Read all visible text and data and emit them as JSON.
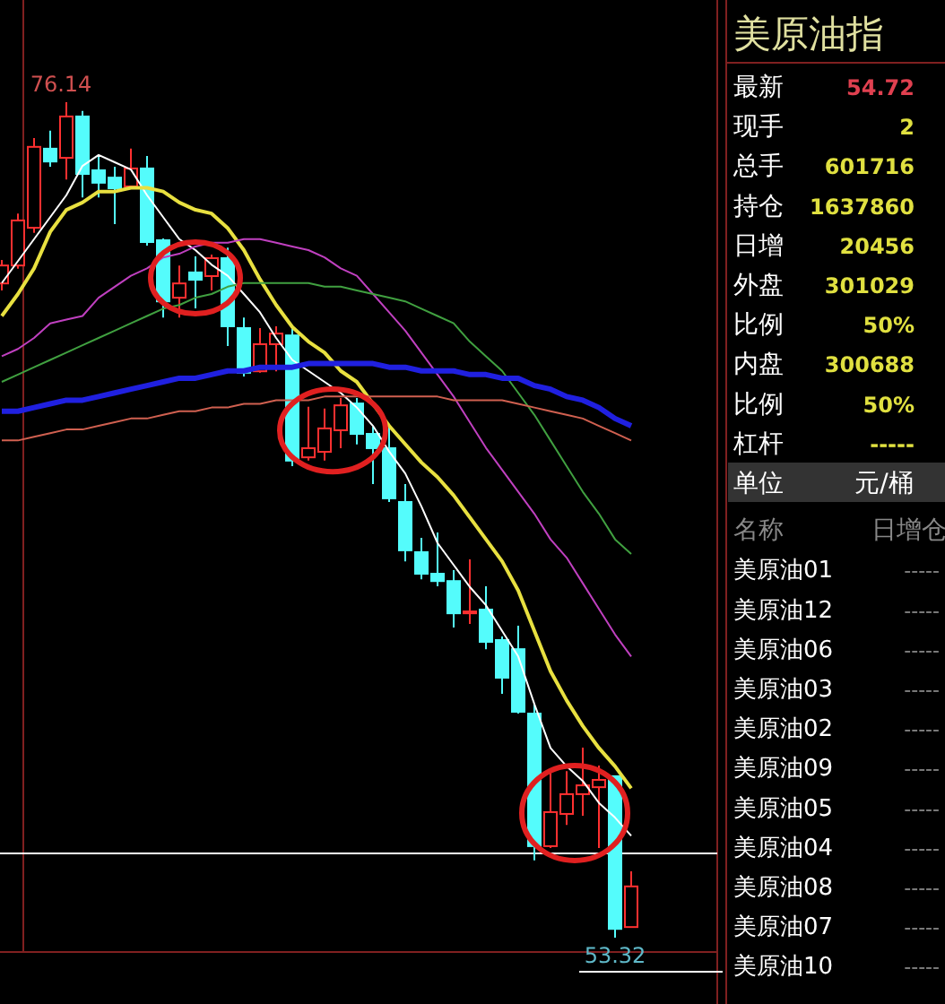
{
  "chart_data": [
    {
      "type": "candlestick",
      "categories": [
        null,
        null,
        null,
        null,
        null,
        null,
        null,
        null,
        null,
        null,
        null,
        null,
        null,
        null,
        null,
        null,
        null,
        null,
        null,
        null,
        null,
        null,
        null,
        null,
        null,
        null,
        null,
        null,
        null,
        null,
        null,
        null,
        null,
        null,
        null,
        null,
        null,
        null,
        null,
        null
      ],
      "ohlc": [
        [
          71.19,
          71.83,
          71.0,
          71.68
        ],
        [
          71.68,
          73.1,
          71.59,
          72.91
        ],
        [
          72.71,
          75.16,
          72.57,
          74.92
        ],
        [
          74.87,
          75.36,
          74.38,
          74.52
        ],
        [
          74.62,
          76.14,
          74.03,
          75.75
        ],
        [
          75.75,
          75.9,
          73.54,
          74.18
        ],
        [
          74.28,
          74.67,
          73.54,
          73.94
        ],
        [
          74.08,
          74.38,
          72.81,
          73.79
        ],
        [
          73.84,
          74.87,
          73.79,
          74.33
        ],
        [
          74.33,
          74.67,
          72.22,
          72.32
        ],
        [
          72.37,
          72.42,
          70.26,
          70.7
        ],
        [
          70.8,
          71.68,
          70.26,
          71.19
        ],
        [
          71.49,
          71.93,
          70.51,
          71.29
        ],
        [
          71.39,
          71.98,
          71.0,
          71.88
        ],
        [
          71.88,
          72.17,
          69.48,
          70.02
        ],
        [
          69.97,
          70.26,
          68.65,
          68.75
        ],
        [
          68.79,
          69.97,
          68.75,
          69.53
        ],
        [
          69.53,
          70.02,
          68.79,
          69.82
        ],
        [
          69.77,
          69.97,
          66.2,
          66.35
        ],
        [
          66.44,
          67.82,
          66.35,
          66.69
        ],
        [
          66.59,
          67.77,
          66.35,
          67.23
        ],
        [
          67.18,
          68.06,
          66.69,
          67.86
        ],
        [
          67.91,
          68.06,
          66.79,
          67.08
        ],
        [
          67.08,
          67.28,
          65.71,
          66.69
        ],
        [
          66.69,
          67.28,
          65.22,
          65.32
        ],
        [
          65.22,
          65.71,
          63.6,
          63.9
        ],
        [
          63.85,
          64.24,
          63.11,
          63.26
        ],
        [
          63.26,
          64.39,
          62.92,
          63.06
        ],
        [
          63.06,
          63.36,
          61.79,
          62.18
        ],
        [
          62.18,
          63.65,
          61.89,
          62.23
        ],
        [
          62.28,
          62.92,
          61.2,
          61.4
        ],
        [
          61.45,
          61.55,
          59.98,
          60.42
        ],
        [
          61.2,
          61.84,
          59.44,
          59.49
        ],
        [
          59.44,
          59.69,
          55.43,
          55.82
        ],
        [
          55.82,
          57.87,
          55.77,
          56.75
        ],
        [
          56.7,
          57.87,
          56.4,
          57.24
        ],
        [
          57.24,
          58.51,
          56.65,
          57.48
        ],
        [
          57.43,
          58.02,
          55.77,
          57.63
        ],
        [
          57.73,
          57.73,
          53.32,
          53.56
        ],
        [
          53.61,
          55.13,
          53.61,
          54.72
        ]
      ],
      "series": [
        {
          "type": "line",
          "color": "#ffffff",
          "values": [
            71.2,
            71.8,
            72.4,
            73.0,
            73.6,
            74.4,
            74.7,
            74.5,
            74.3,
            73.6,
            73.0,
            72.4,
            72.1,
            71.7,
            71.4,
            70.9,
            70.4,
            69.7,
            69.1,
            68.8,
            68.5,
            68.2,
            67.8,
            67.3,
            66.6,
            66.0,
            65.1,
            64.1,
            63.5,
            62.9,
            62.4,
            61.7,
            61.0,
            59.7,
            58.5,
            58.0,
            57.6,
            57.0,
            56.6,
            56.1
          ]
        },
        {
          "type": "line",
          "color": "#e8e040",
          "values": [
            70.3,
            70.9,
            71.6,
            72.6,
            73.2,
            73.4,
            73.7,
            73.7,
            73.8,
            73.8,
            73.7,
            73.4,
            73.2,
            73.1,
            72.7,
            72.1,
            71.3,
            70.6,
            70.0,
            69.6,
            69.3,
            68.8,
            68.5,
            67.9,
            67.3,
            66.8,
            66.3,
            65.9,
            65.4,
            64.8,
            64.2,
            63.6,
            62.8,
            61.7,
            60.6,
            59.8,
            59.1,
            58.5,
            58.0,
            57.4
          ]
        },
        {
          "type": "line",
          "color": "#c040c0",
          "values": [
            69.2,
            69.4,
            69.7,
            70.1,
            70.2,
            70.3,
            70.8,
            71.1,
            71.4,
            71.6,
            71.9,
            72.0,
            72.2,
            72.3,
            72.3,
            72.4,
            72.4,
            72.3,
            72.2,
            72.1,
            71.9,
            71.6,
            71.4,
            70.9,
            70.4,
            69.9,
            69.3,
            68.7,
            68.1,
            67.4,
            66.7,
            66.1,
            65.5,
            64.9,
            64.2,
            63.7,
            63.0,
            62.3,
            61.6,
            61.0
          ]
        },
        {
          "type": "line",
          "color": "#40a040",
          "values": [
            68.5,
            68.7,
            68.9,
            69.1,
            69.3,
            69.5,
            69.7,
            69.9,
            70.1,
            70.3,
            70.5,
            70.6,
            70.8,
            70.9,
            71.1,
            71.2,
            71.2,
            71.2,
            71.2,
            71.2,
            71.1,
            71.1,
            71.0,
            70.9,
            70.8,
            70.7,
            70.5,
            70.3,
            70.1,
            69.6,
            69.2,
            68.8,
            68.2,
            67.6,
            66.9,
            66.2,
            65.5,
            64.9,
            64.2,
            63.8
          ]
        },
        {
          "type": "line",
          "color": "#2020e0",
          "values": [
            67.7,
            67.7,
            67.8,
            67.9,
            68.0,
            68.0,
            68.1,
            68.2,
            68.3,
            68.4,
            68.5,
            68.6,
            68.6,
            68.7,
            68.8,
            68.8,
            68.9,
            68.9,
            68.9,
            69.0,
            69.0,
            69.0,
            69.0,
            69.0,
            68.9,
            68.9,
            68.8,
            68.8,
            68.8,
            68.7,
            68.7,
            68.6,
            68.6,
            68.4,
            68.3,
            68.1,
            68.0,
            67.8,
            67.5,
            67.3
          ]
        },
        {
          "type": "line",
          "color": "#d06050",
          "values": [
            66.9,
            66.9,
            67.0,
            67.1,
            67.2,
            67.2,
            67.3,
            67.4,
            67.5,
            67.5,
            67.6,
            67.7,
            67.7,
            67.8,
            67.8,
            67.9,
            67.9,
            68.0,
            68.0,
            68.0,
            68.1,
            68.1,
            68.1,
            68.1,
            68.1,
            68.1,
            68.1,
            68.1,
            68.0,
            68.0,
            68.0,
            68.0,
            67.9,
            67.8,
            67.7,
            67.6,
            67.5,
            67.3,
            67.1,
            66.9
          ]
        }
      ],
      "ref_lines": [
        {
          "axis": "y",
          "value": 55.62,
          "color": "#ffffff"
        }
      ],
      "annotations": [
        {
          "text": "76.14",
          "y": 76.14
        },
        {
          "text": "53.32",
          "y": 53.32
        }
      ]
    },
    {
      "type": "other",
      "title": "美原油指",
      "annotations": [
        "最新",
        "54.72",
        "现手",
        "2",
        "总手",
        "601716",
        "持仓",
        "1637860",
        "日增",
        "20456",
        "外盘",
        "301029",
        "比例",
        "50%",
        "内盘",
        "300688",
        "比例",
        "50%",
        "杠杆",
        "-----",
        "单位",
        "元/桶",
        "名称",
        "日增仓",
        "美原油01",
        "-----",
        "美原油12",
        "-----",
        "美原油06",
        "-----",
        "美原油03",
        "-----",
        "美原油02",
        "-----",
        "美原油09",
        "-----",
        "美原油05",
        "-----",
        "美原油04",
        "-----",
        "美原油08",
        "-----",
        "美原油07",
        "-----",
        "美原油10",
        "-----"
      ]
    }
  ]
}
